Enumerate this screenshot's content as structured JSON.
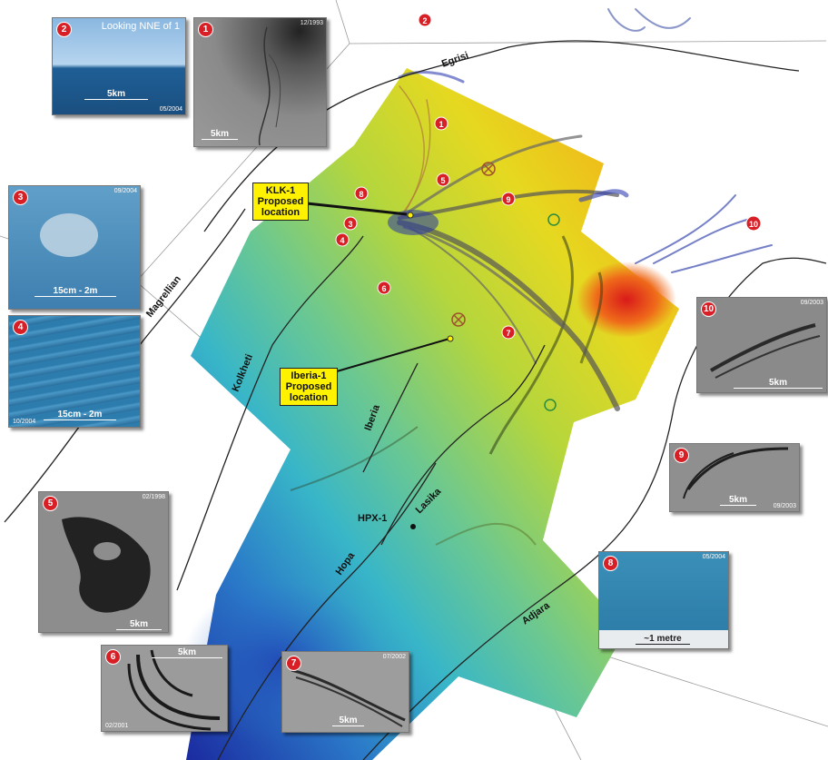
{
  "title": "",
  "legend": [],
  "map_badges": [
    {
      "id": "1",
      "label": "1"
    },
    {
      "id": "2",
      "label": "2"
    },
    {
      "id": "3",
      "label": "3"
    },
    {
      "id": "4",
      "label": "4"
    },
    {
      "id": "5",
      "label": "5"
    },
    {
      "id": "6",
      "label": "6"
    },
    {
      "id": "7",
      "label": "7"
    },
    {
      "id": "8",
      "label": "8"
    },
    {
      "id": "9",
      "label": "9"
    },
    {
      "id": "10",
      "label": "10"
    }
  ],
  "fault_labels": {
    "egrisi": "Egrisi",
    "magrellian": "Magrellian",
    "kolkheti": "Kolkheti",
    "iberia": "Iberia",
    "lasika": "Lasika",
    "hopa": "Hopa",
    "adjara": "Adjara"
  },
  "wells": {
    "hpx1": "HPX-1",
    "klk1": {
      "line1": "KLK-1",
      "line2": "Proposed",
      "line3": "location"
    },
    "iberia1": {
      "line1": "Iberia-1",
      "line2": "Proposed",
      "line3": "location"
    }
  },
  "insets": [
    {
      "id": "1",
      "date": "12/1993",
      "scale": "5km"
    },
    {
      "id": "2",
      "caption": "Looking NNE of 1",
      "date": "05/2004",
      "scale": "5km"
    },
    {
      "id": "3",
      "date": "09/2004",
      "scale": "15cm - 2m"
    },
    {
      "id": "4",
      "date": "10/2004",
      "scale": "15cm - 2m"
    },
    {
      "id": "5",
      "date": "02/1998",
      "scale": "5km"
    },
    {
      "id": "6",
      "date": "02/2001",
      "scale": "5km"
    },
    {
      "id": "7",
      "date": "07/2002",
      "scale": "5km"
    },
    {
      "id": "8",
      "date": "05/2004",
      "scale": "~1 metre"
    },
    {
      "id": "9",
      "date": "09/2003",
      "scale": "5km"
    },
    {
      "id": "10",
      "date": "09/2003",
      "scale": "5km"
    }
  ]
}
